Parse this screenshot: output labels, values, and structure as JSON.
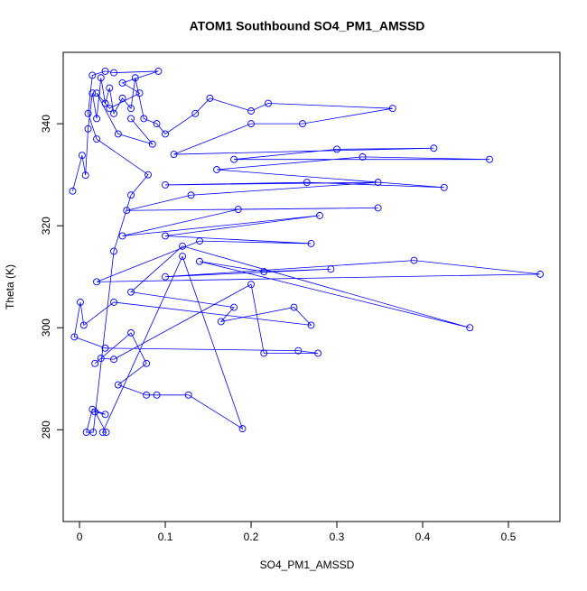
{
  "chart_data": {
    "type": "line",
    "title": "ATOM1 Southbound SO4_PM1_AMSSD",
    "x_label": "SO4_PM1_AMSSD",
    "y_label": "Theta (K)",
    "xlim": [
      -0.019,
      0.56
    ],
    "ylim": [
      262,
      354
    ],
    "xticks": [
      0.0,
      0.1,
      0.2,
      0.3,
      0.4,
      0.5
    ],
    "yticks": [
      280,
      300,
      320,
      340
    ],
    "markers": "open-circle",
    "series": [
      {
        "color": "#0000ff",
        "x": [
          -0.008,
          0.003,
          0.007,
          0.01,
          0.015,
          0.02,
          0.025,
          0.03,
          0.035,
          0.04,
          0.05,
          0.06,
          0.065,
          0.075,
          0.09,
          0.1,
          0.135,
          0.152,
          0.2,
          0.22,
          0.365,
          0.26,
          0.2,
          0.11,
          0.413,
          0.3,
          0.18,
          0.478,
          0.33,
          0.16,
          0.425,
          0.265,
          0.1,
          0.348,
          0.13,
          0.055,
          0.348,
          0.185,
          0.05,
          0.28,
          0.1,
          0.27,
          0.14,
          0.02,
          0.537,
          0.39,
          0.1,
          0.293,
          0.215,
          0.14,
          0.455,
          0.12,
          0.06,
          0.18,
          0.165,
          0.25,
          0.27,
          0.04,
          0.005,
          0.001,
          -0.006,
          0.03,
          0.255,
          0.278,
          0.215,
          0.2,
          0.04,
          0.025,
          0.018,
          0.06,
          0.078,
          0.045,
          0.078,
          0.09,
          0.127,
          0.19,
          0.12,
          0.027,
          0.031,
          0.018,
          0.03,
          0.015,
          0.008,
          0.016,
          0.04,
          0.06,
          0.08,
          0.02,
          0.01,
          0.015,
          0.03,
          0.04,
          0.092,
          0.05,
          0.07,
          0.035,
          0.02,
          0.045,
          0.085,
          0.06
        ],
        "values": [
          326.8,
          333.8,
          329.9,
          339,
          346,
          341,
          349,
          344,
          347,
          342,
          345,
          343,
          349,
          341,
          340,
          338,
          342,
          345,
          342.5,
          344,
          343,
          340,
          340,
          334,
          335.2,
          335,
          333,
          333,
          333.5,
          331,
          327.5,
          328.5,
          328,
          328.5,
          326,
          323,
          323.5,
          323.2,
          318,
          322,
          318,
          316.5,
          317,
          309,
          310.5,
          313.2,
          310,
          311.5,
          311,
          313,
          300,
          316,
          307,
          304,
          301.2,
          304,
          300.5,
          305,
          300.5,
          305,
          298.2,
          296,
          295.5,
          295,
          295,
          308.5,
          293.8,
          294,
          293,
          299,
          293,
          288.8,
          286.8,
          286.8,
          286.8,
          280.2,
          314,
          279.5,
          279.5,
          283.5,
          283,
          284,
          279.5,
          279.5,
          315,
          326,
          330,
          337,
          342,
          349.5,
          350.3,
          350,
          350.3,
          348,
          346,
          343,
          346,
          338,
          336,
          341
        ]
      }
    ]
  }
}
